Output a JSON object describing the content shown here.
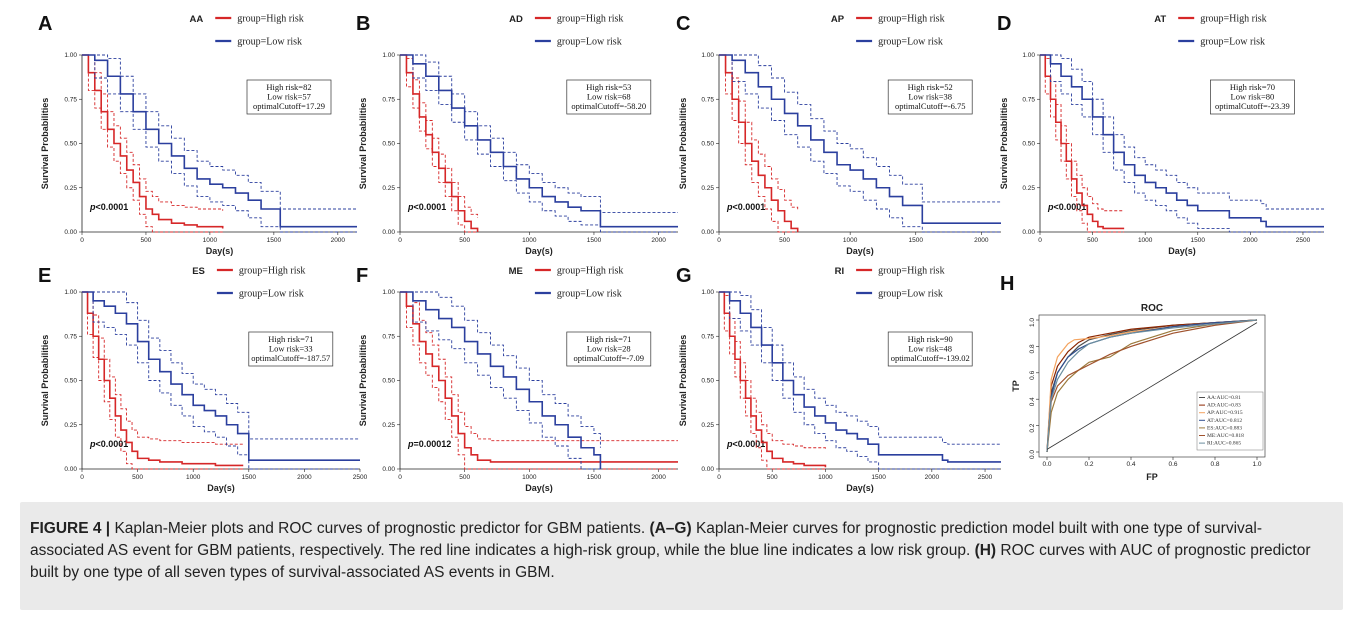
{
  "colors": {
    "high": "#d62728",
    "low": "#2b3f9e"
  },
  "chart_data": [
    {
      "type": "line",
      "panel": "A",
      "group_label": "AA",
      "legend": [
        "group=High risk",
        "group=Low risk"
      ],
      "ylabel": "Survival Probabilities",
      "xlabel": "Day(s)",
      "yticks": [
        "0.00",
        "0.25",
        "0.50",
        "0.75",
        "1.00"
      ],
      "xticks": [
        "0",
        "500",
        "1000",
        "1500",
        "2000"
      ],
      "xlim": [
        0,
        2150
      ],
      "ylim": [
        0,
        1
      ],
      "box": [
        "High risk=82",
        "Low risk=57",
        "optimalCutoff=17.29"
      ],
      "pvalue": "<0.0001",
      "series": [
        {
          "name": "High risk",
          "x": [
            0,
            50,
            100,
            150,
            200,
            250,
            300,
            350,
            400,
            450,
            500,
            550,
            600,
            700,
            800,
            900,
            1000,
            1100
          ],
          "y": [
            1.0,
            0.9,
            0.8,
            0.68,
            0.58,
            0.5,
            0.43,
            0.35,
            0.28,
            0.2,
            0.13,
            0.1,
            0.07,
            0.05,
            0.04,
            0.03,
            0.03,
            0.02
          ]
        },
        {
          "name": "Low risk",
          "x": [
            0,
            100,
            200,
            300,
            400,
            500,
            600,
            700,
            800,
            900,
            1000,
            1100,
            1200,
            1300,
            1400,
            1550,
            2150
          ],
          "y": [
            1.0,
            0.97,
            0.88,
            0.78,
            0.68,
            0.58,
            0.5,
            0.43,
            0.36,
            0.3,
            0.27,
            0.25,
            0.22,
            0.18,
            0.13,
            0.03,
            0.03
          ]
        }
      ]
    },
    {
      "type": "line",
      "panel": "B",
      "group_label": "AD",
      "legend": [
        "group=High risk",
        "group=Low risk"
      ],
      "ylabel": "Survival Probabilities",
      "xlabel": "Day(s)",
      "yticks": [
        "0.00",
        "0.25",
        "0.50",
        "0.75",
        "1.00"
      ],
      "xticks": [
        "0",
        "500",
        "1000",
        "1500",
        "2000"
      ],
      "xlim": [
        0,
        2150
      ],
      "ylim": [
        0,
        1
      ],
      "box": [
        "High risk=53",
        "Low risk=68",
        "optimalCutoff=-58.20"
      ],
      "pvalue": "<0.0001",
      "series": [
        {
          "name": "High risk",
          "x": [
            0,
            50,
            100,
            150,
            200,
            250,
            300,
            350,
            400,
            450,
            500,
            550,
            600
          ],
          "y": [
            1.0,
            0.9,
            0.78,
            0.65,
            0.55,
            0.45,
            0.36,
            0.28,
            0.2,
            0.12,
            0.06,
            0.02,
            0.0
          ]
        },
        {
          "name": "Low risk",
          "x": [
            0,
            100,
            200,
            300,
            400,
            500,
            600,
            700,
            800,
            900,
            1000,
            1100,
            1200,
            1300,
            1400,
            1550,
            2150
          ],
          "y": [
            1.0,
            0.95,
            0.88,
            0.8,
            0.7,
            0.6,
            0.52,
            0.45,
            0.37,
            0.3,
            0.25,
            0.2,
            0.17,
            0.14,
            0.12,
            0.03,
            0.03
          ]
        }
      ]
    },
    {
      "type": "line",
      "panel": "C",
      "group_label": "AP",
      "legend": [
        "group=High risk",
        "group=Low risk"
      ],
      "ylabel": "Survival Probabilities",
      "xlabel": "Day(s)",
      "yticks": [
        "0.00",
        "0.25",
        "0.50",
        "0.75",
        "1.00"
      ],
      "xticks": [
        "0",
        "500",
        "1000",
        "1500",
        "2000"
      ],
      "xlim": [
        0,
        2150
      ],
      "ylim": [
        0,
        1
      ],
      "box": [
        "High risk=52",
        "Low risk=38",
        "optimalCutoff=-6.75"
      ],
      "pvalue": "<0.0001",
      "series": [
        {
          "name": "High risk",
          "x": [
            0,
            50,
            100,
            150,
            200,
            250,
            300,
            350,
            400,
            450,
            500,
            550,
            600
          ],
          "y": [
            1.0,
            0.9,
            0.75,
            0.62,
            0.5,
            0.4,
            0.32,
            0.25,
            0.18,
            0.12,
            0.06,
            0.02,
            0.0
          ]
        },
        {
          "name": "Low risk",
          "x": [
            0,
            100,
            200,
            300,
            400,
            500,
            600,
            700,
            800,
            900,
            1000,
            1100,
            1200,
            1300,
            1400,
            1550,
            2150
          ],
          "y": [
            1.0,
            0.97,
            0.9,
            0.82,
            0.75,
            0.67,
            0.6,
            0.52,
            0.45,
            0.38,
            0.35,
            0.3,
            0.25,
            0.2,
            0.15,
            0.05,
            0.05
          ]
        }
      ]
    },
    {
      "type": "line",
      "panel": "D",
      "group_label": "AT",
      "legend": [
        "group=High risk",
        "group=Low risk"
      ],
      "ylabel": "Survival Probabilities",
      "xlabel": "Day(s)",
      "yticks": [
        "0.00",
        "0.25",
        "0.50",
        "0.75",
        "1.00"
      ],
      "xticks": [
        "0",
        "500",
        "1000",
        "1500",
        "2000",
        "2500"
      ],
      "xlim": [
        0,
        2700
      ],
      "ylim": [
        0,
        1
      ],
      "box": [
        "High risk=70",
        "Low risk=80",
        "optimalCutoff=-23.39"
      ],
      "pvalue": "<0.0001",
      "series": [
        {
          "name": "High risk",
          "x": [
            0,
            50,
            100,
            150,
            200,
            250,
            300,
            350,
            400,
            450,
            500,
            550,
            600,
            700,
            800
          ],
          "y": [
            1.0,
            0.88,
            0.75,
            0.62,
            0.5,
            0.4,
            0.3,
            0.22,
            0.15,
            0.1,
            0.06,
            0.03,
            0.02,
            0.02,
            0.02
          ]
        },
        {
          "name": "Low risk",
          "x": [
            0,
            100,
            200,
            300,
            400,
            500,
            600,
            700,
            800,
            900,
            1000,
            1100,
            1200,
            1300,
            1400,
            1500,
            1800,
            2100,
            2150,
            2700
          ],
          "y": [
            1.0,
            0.95,
            0.88,
            0.82,
            0.75,
            0.65,
            0.55,
            0.45,
            0.38,
            0.32,
            0.28,
            0.25,
            0.22,
            0.18,
            0.15,
            0.12,
            0.08,
            0.06,
            0.03,
            0.03
          ]
        }
      ]
    },
    {
      "type": "line",
      "panel": "E",
      "group_label": "ES",
      "legend": [
        "group=High risk",
        "group=Low risk"
      ],
      "ylabel": "Survival Probabilities",
      "xlabel": "Day(s)",
      "yticks": [
        "0.00",
        "0.25",
        "0.50",
        "0.75",
        "1.00"
      ],
      "xticks": [
        "0",
        "500",
        "1000",
        "1500",
        "2000",
        "2500"
      ],
      "xlim": [
        0,
        2500
      ],
      "ylim": [
        0,
        1
      ],
      "box": [
        "High risk=71",
        "Low risk=33",
        "optimalCutoff=-187.57"
      ],
      "pvalue": "<0.0001",
      "series": [
        {
          "name": "High risk",
          "x": [
            0,
            50,
            100,
            150,
            200,
            250,
            300,
            350,
            400,
            450,
            500,
            600,
            700,
            800,
            900,
            1000,
            1200,
            1450
          ],
          "y": [
            1.0,
            0.88,
            0.75,
            0.62,
            0.5,
            0.4,
            0.3,
            0.22,
            0.15,
            0.1,
            0.06,
            0.05,
            0.04,
            0.04,
            0.03,
            0.03,
            0.02,
            0.02
          ]
        },
        {
          "name": "Low risk",
          "x": [
            0,
            100,
            200,
            300,
            400,
            500,
            600,
            700,
            800,
            900,
            1000,
            1100,
            1200,
            1300,
            1400,
            1500,
            2500
          ],
          "y": [
            1.0,
            0.95,
            0.92,
            0.88,
            0.82,
            0.72,
            0.62,
            0.55,
            0.48,
            0.42,
            0.36,
            0.33,
            0.3,
            0.25,
            0.2,
            0.05,
            0.05
          ]
        }
      ]
    },
    {
      "type": "line",
      "panel": "F",
      "group_label": "ME",
      "legend": [
        "group=High risk",
        "group=Low risk"
      ],
      "ylabel": "Survival Probabilities",
      "xlabel": "Day(s)",
      "yticks": [
        "0.00",
        "0.25",
        "0.50",
        "0.75",
        "1.00"
      ],
      "xticks": [
        "0",
        "500",
        "1000",
        "1500",
        "2000"
      ],
      "xlim": [
        0,
        2150
      ],
      "ylim": [
        0,
        1
      ],
      "box": [
        "High risk=71",
        "Low risk=28",
        "optimalCutoff=-7.09"
      ],
      "pvalue": "=0.00012",
      "series": [
        {
          "name": "High risk",
          "x": [
            0,
            50,
            100,
            150,
            200,
            250,
            300,
            350,
            400,
            450,
            500,
            550,
            600,
            700,
            800,
            1000,
            1500,
            2150
          ],
          "y": [
            1.0,
            0.92,
            0.82,
            0.72,
            0.65,
            0.58,
            0.5,
            0.4,
            0.3,
            0.2,
            0.12,
            0.08,
            0.05,
            0.04,
            0.04,
            0.04,
            0.04,
            0.04
          ]
        },
        {
          "name": "Low risk",
          "x": [
            0,
            100,
            200,
            300,
            400,
            500,
            600,
            700,
            800,
            900,
            1000,
            1100,
            1200,
            1300,
            1400,
            1500,
            1550
          ],
          "y": [
            1.0,
            0.95,
            0.9,
            0.85,
            0.8,
            0.72,
            0.65,
            0.58,
            0.52,
            0.45,
            0.38,
            0.3,
            0.25,
            0.18,
            0.12,
            0.08,
            0.0
          ]
        }
      ]
    },
    {
      "type": "line",
      "panel": "G",
      "group_label": "RI",
      "legend": [
        "group=High risk",
        "group=Low risk"
      ],
      "ylabel": "Survival Probabilities",
      "xlabel": "Day(s)",
      "yticks": [
        "0.00",
        "0.25",
        "0.50",
        "0.75",
        "1.00"
      ],
      "xticks": [
        "0",
        "500",
        "1000",
        "1500",
        "2000",
        "2500"
      ],
      "xlim": [
        0,
        2650
      ],
      "ylim": [
        0,
        1
      ],
      "box": [
        "High risk=90",
        "Low risk=48",
        "optimalCutoff=-139.02"
      ],
      "pvalue": "<0.0001",
      "series": [
        {
          "name": "High risk",
          "x": [
            0,
            50,
            100,
            150,
            200,
            250,
            300,
            350,
            400,
            450,
            500,
            600,
            700,
            800,
            900,
            1000
          ],
          "y": [
            1.0,
            0.88,
            0.75,
            0.62,
            0.5,
            0.4,
            0.3,
            0.22,
            0.15,
            0.1,
            0.06,
            0.04,
            0.03,
            0.02,
            0.02,
            0.01
          ]
        },
        {
          "name": "Low risk",
          "x": [
            0,
            100,
            200,
            300,
            400,
            500,
            600,
            700,
            800,
            900,
            1000,
            1100,
            1200,
            1300,
            1400,
            1500,
            2100,
            2150,
            2650
          ],
          "y": [
            1.0,
            0.95,
            0.88,
            0.8,
            0.7,
            0.6,
            0.5,
            0.42,
            0.35,
            0.3,
            0.26,
            0.22,
            0.2,
            0.17,
            0.14,
            0.08,
            0.05,
            0.04,
            0.04
          ]
        }
      ]
    },
    {
      "type": "line",
      "panel": "H",
      "title": "ROC",
      "xlabel": "FP",
      "ylabel": "TP",
      "xticks": [
        "0.0",
        "0.2",
        "0.4",
        "0.6",
        "0.8",
        "1.0"
      ],
      "yticks": [
        "0.0",
        "0.2",
        "0.4",
        "0.6",
        "0.8",
        "1.0"
      ],
      "xlim": [
        0,
        1
      ],
      "ylim": [
        0,
        1
      ],
      "series": [
        {
          "name": "AA:AUC=0.81",
          "color": "#4d4d4d",
          "x": [
            0,
            0.02,
            0.05,
            0.1,
            0.15,
            0.2,
            0.3,
            0.4,
            0.6,
            0.8,
            1.0
          ],
          "y": [
            0,
            0.45,
            0.6,
            0.72,
            0.8,
            0.85,
            0.89,
            0.92,
            0.96,
            0.98,
            1.0
          ]
        },
        {
          "name": "AD:AUC=0.83",
          "color": "#8b2500",
          "x": [
            0,
            0.02,
            0.05,
            0.1,
            0.15,
            0.2,
            0.3,
            0.4,
            0.6,
            0.8,
            1.0
          ],
          "y": [
            0,
            0.5,
            0.65,
            0.76,
            0.83,
            0.87,
            0.9,
            0.93,
            0.96,
            0.98,
            1.0
          ]
        },
        {
          "name": "AP:AUC=0.915",
          "color": "#f4a460",
          "x": [
            0,
            0.02,
            0.05,
            0.1,
            0.13,
            0.2,
            0.3,
            0.4,
            0.6,
            0.8,
            1.0
          ],
          "y": [
            0,
            0.55,
            0.72,
            0.82,
            0.85,
            0.86,
            0.88,
            0.91,
            0.95,
            0.98,
            1.0
          ]
        },
        {
          "name": "AT:AUC=0.812",
          "color": "#2f4f8f",
          "x": [
            0,
            0.02,
            0.05,
            0.1,
            0.15,
            0.2,
            0.3,
            0.4,
            0.6,
            0.8,
            1.0
          ],
          "y": [
            0,
            0.42,
            0.6,
            0.72,
            0.78,
            0.82,
            0.87,
            0.9,
            0.95,
            0.98,
            1.0
          ]
        },
        {
          "name": "ES:AUC=0.883",
          "color": "#9c7a3c",
          "x": [
            0,
            0.02,
            0.05,
            0.1,
            0.15,
            0.2,
            0.25,
            0.3,
            0.4,
            0.6,
            0.8,
            1.0
          ],
          "y": [
            0,
            0.3,
            0.45,
            0.55,
            0.62,
            0.68,
            0.7,
            0.72,
            0.82,
            0.92,
            0.97,
            1.0
          ]
        },
        {
          "name": "ME:AUC=0.818",
          "color": "#a0522d",
          "x": [
            0,
            0.02,
            0.05,
            0.1,
            0.15,
            0.2,
            0.3,
            0.4,
            0.6,
            0.8,
            1.0
          ],
          "y": [
            0,
            0.38,
            0.5,
            0.58,
            0.62,
            0.66,
            0.74,
            0.8,
            0.9,
            0.96,
            1.0
          ]
        },
        {
          "name": "RI:AUC=0.865",
          "color": "#6b8e9f",
          "x": [
            0,
            0.02,
            0.05,
            0.1,
            0.15,
            0.2,
            0.3,
            0.4,
            0.6,
            0.8,
            1.0
          ],
          "y": [
            0,
            0.4,
            0.55,
            0.68,
            0.76,
            0.82,
            0.87,
            0.9,
            0.94,
            0.97,
            1.0
          ]
        },
        {
          "name": "diagonal",
          "color": "#333333",
          "x": [
            0,
            1
          ],
          "y": [
            0.02,
            0.98
          ]
        }
      ]
    }
  ],
  "caption": {
    "label": "FIGURE 4 |",
    "title": "Kaplan-Meier plots and ROC curves of prognostic predictor for GBM patients.",
    "ag": "(A–G)",
    "ag_text": "Kaplan-Meier curves for prognostic prediction model built with one type of survival-associated AS event for GBM patients, respectively. The red line indicates a high-risk group, while the blue line indicates a low risk group.",
    "h": "(H)",
    "h_text": "ROC curves with AUC of prognostic predictor built by one type of all seven types of survival-associated AS events in GBM."
  }
}
